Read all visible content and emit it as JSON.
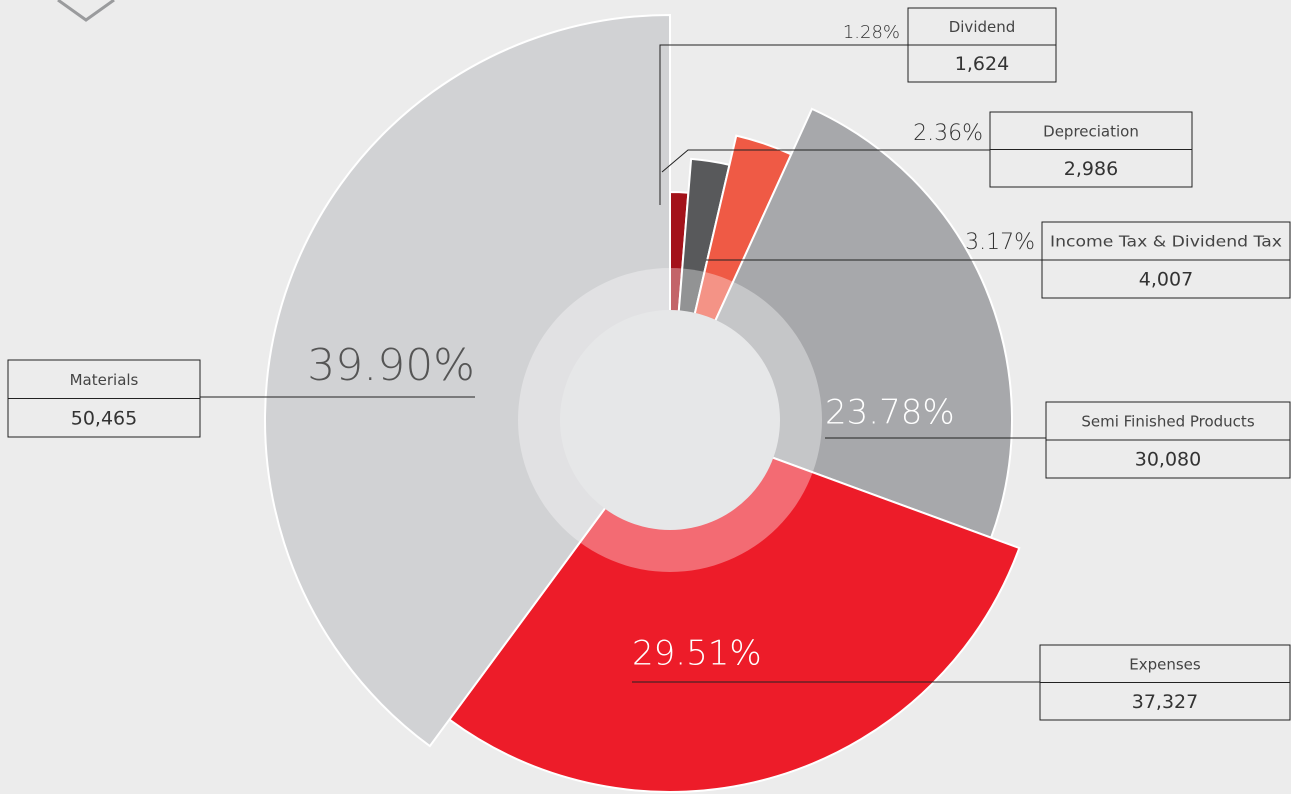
{
  "chart_data": {
    "type": "pie",
    "categories": [
      "Dividend",
      "Depreciation",
      "Income Tax & Dividend Tax",
      "Semi Finished Products",
      "Expenses",
      "Materials"
    ],
    "values": [
      1624,
      2986,
      4007,
      30080,
      37327,
      50465
    ],
    "value_labels": [
      "1,624",
      "2,986",
      "4,007",
      "30,080",
      "37,327",
      "50,465"
    ],
    "percent_labels": [
      "1.28%",
      "2.36%",
      "3.17%",
      "23.78%",
      "29.51%",
      "39.90%"
    ],
    "colors": [
      "#a3121a",
      "#58595b",
      "#ef5a45",
      "#a7a8ab",
      "#ed1c29",
      "#d1d2d4"
    ]
  }
}
